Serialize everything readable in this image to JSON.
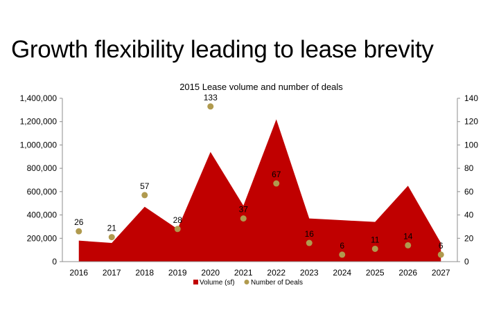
{
  "page": {
    "headline": "Growth flexibility leading to lease brevity"
  },
  "chart_data": {
    "type": "area+scatter",
    "title": "2015 Lease volume and number of deals",
    "categories": [
      "2016",
      "2017",
      "2018",
      "2019",
      "2020",
      "2021",
      "2022",
      "2023",
      "2024",
      "2025",
      "2026",
      "2027"
    ],
    "series": [
      {
        "name": "Volume (sf)",
        "type": "area",
        "axis": "left",
        "values": [
          180000,
          160000,
          470000,
          280000,
          940000,
          480000,
          1220000,
          370000,
          355000,
          340000,
          650000,
          160000
        ]
      },
      {
        "name": "Number of Deals",
        "type": "scatter",
        "axis": "right",
        "values": [
          26,
          21,
          57,
          28,
          133,
          37,
          67,
          16,
          6,
          11,
          14,
          6
        ]
      }
    ],
    "yleft": {
      "min": 0,
      "max": 1400000,
      "step": 200000,
      "ticks": [
        "0",
        "200,000",
        "400,000",
        "600,000",
        "800,000",
        "1,000,000",
        "1,200,000",
        "1,400,000"
      ]
    },
    "yright": {
      "min": 0,
      "max": 140,
      "step": 20,
      "ticks": [
        "0",
        "20",
        "40",
        "60",
        "80",
        "100",
        "120",
        "140"
      ]
    },
    "colors": {
      "area": "#c00000",
      "dots": "#b09a4e"
    },
    "legend": "bottom-center",
    "grid": false
  }
}
